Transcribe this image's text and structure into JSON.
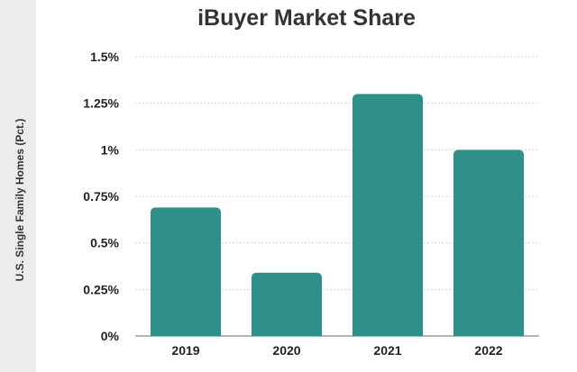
{
  "chart_data": {
    "type": "bar",
    "title": "iBuyer Market Share",
    "ylabel": "U.S. Single Family Homes (Pct.)",
    "xlabel": "",
    "categories": [
      "2019",
      "2020",
      "2021",
      "2022"
    ],
    "values": [
      0.69,
      0.34,
      1.3,
      1.0
    ],
    "ylim": [
      0,
      1.5
    ],
    "yticks": [
      0,
      0.25,
      0.5,
      0.75,
      1.0,
      1.25,
      1.5
    ],
    "ytick_labels": [
      "0%",
      "0.25%",
      "0.5%",
      "0.75%",
      "1%",
      "1.25%",
      "1.5%"
    ],
    "grid": true,
    "bar_color": "#2e9088"
  }
}
